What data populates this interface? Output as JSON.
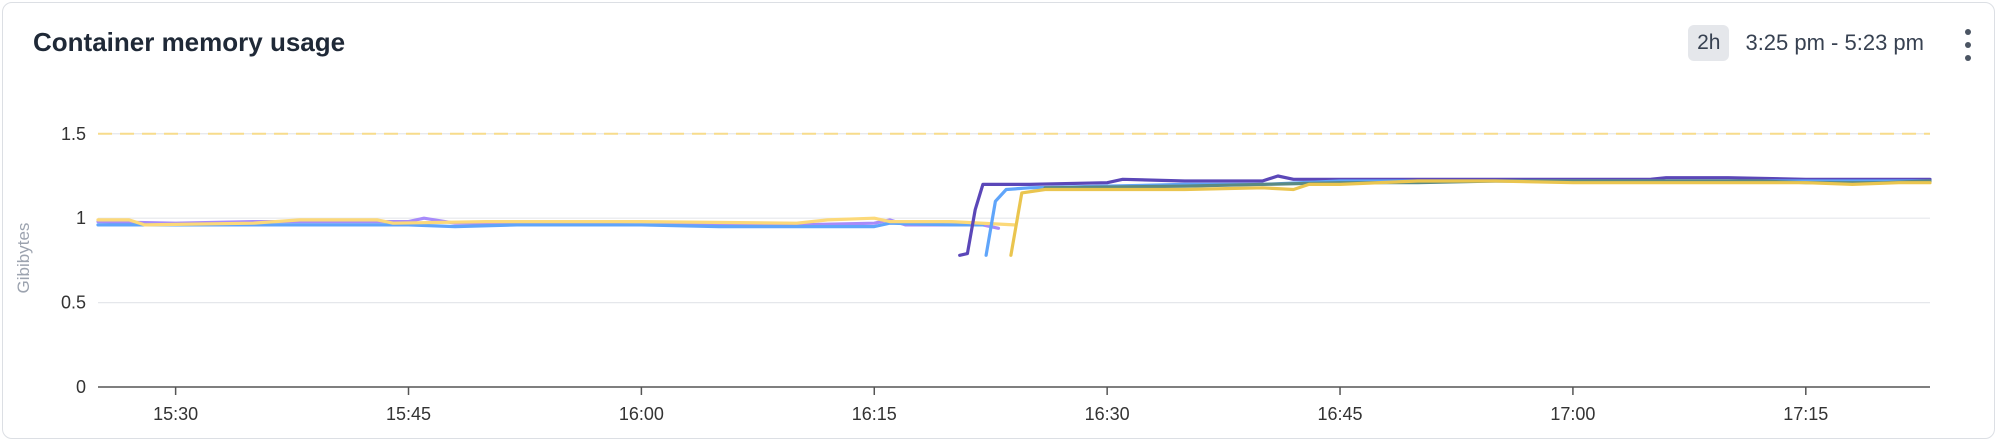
{
  "panel": {
    "title": "Container memory usage",
    "range_badge": "2h",
    "range_text": "3:25 pm - 5:23 pm",
    "menu_icon": "kebab-vertical-icon"
  },
  "chart_data": {
    "type": "line",
    "title": "Container memory usage",
    "xlabel": "",
    "ylabel": "Gibibytes",
    "x_unit": "time (HH:MM)",
    "xlim": [
      "15:25",
      "17:23"
    ],
    "ylim": [
      0,
      1.7
    ],
    "yticks": [
      0,
      0.5,
      1,
      1.5
    ],
    "ytick_labels": [
      "0",
      "0.5",
      "1",
      "1.5"
    ],
    "xticks": [
      "15:30",
      "15:45",
      "16:00",
      "16:15",
      "16:30",
      "16:45",
      "17:00",
      "17:15"
    ],
    "grid": true,
    "legend": "none",
    "threshold": {
      "value": 1.5,
      "color": "#f7dc8c",
      "style": "dashed"
    },
    "series": [
      {
        "color": "#a78bfa",
        "points": [
          [
            "15:25",
            0.98
          ],
          [
            "15:30",
            0.97
          ],
          [
            "15:35",
            0.98
          ],
          [
            "15:40",
            0.98
          ],
          [
            "15:45",
            0.98
          ],
          [
            "15:46",
            1.0
          ],
          [
            "15:48",
            0.97
          ],
          [
            "15:52",
            0.97
          ],
          [
            "16:00",
            0.96
          ],
          [
            "16:10",
            0.96
          ],
          [
            "16:15",
            0.97
          ],
          [
            "16:16",
            0.99
          ],
          [
            "16:17",
            0.96
          ],
          [
            "16:22",
            0.96
          ],
          [
            "16:23",
            0.94
          ]
        ]
      },
      {
        "color": "#60a5fa",
        "points": [
          [
            "15:25",
            0.96
          ],
          [
            "15:30",
            0.96
          ],
          [
            "15:40",
            0.96
          ],
          [
            "15:45",
            0.96
          ],
          [
            "15:48",
            0.95
          ],
          [
            "15:52",
            0.96
          ],
          [
            "16:00",
            0.96
          ],
          [
            "16:05",
            0.95
          ],
          [
            "16:10",
            0.95
          ],
          [
            "16:15",
            0.95
          ],
          [
            "16:16",
            0.97
          ],
          [
            "16:20",
            0.96
          ],
          [
            "16:22",
            0.96
          ]
        ]
      },
      {
        "color": "#fcd979",
        "points": [
          [
            "15:25",
            0.99
          ],
          [
            "15:27",
            0.99
          ],
          [
            "15:28",
            0.96
          ],
          [
            "15:35",
            0.97
          ],
          [
            "15:38",
            0.99
          ],
          [
            "15:43",
            0.99
          ],
          [
            "15:44",
            0.97
          ],
          [
            "15:50",
            0.98
          ],
          [
            "16:00",
            0.98
          ],
          [
            "16:10",
            0.97
          ],
          [
            "16:12",
            0.99
          ],
          [
            "16:15",
            1.0
          ],
          [
            "16:16",
            0.98
          ],
          [
            "16:20",
            0.98
          ],
          [
            "16:24",
            0.96
          ]
        ]
      },
      {
        "color": "#5b47b8",
        "points": [
          [
            "16:20.5",
            0.78
          ],
          [
            "16:21",
            0.79
          ],
          [
            "16:21.5",
            1.05
          ],
          [
            "16:22",
            1.2
          ],
          [
            "16:25",
            1.2
          ],
          [
            "16:30",
            1.21
          ],
          [
            "16:31",
            1.23
          ],
          [
            "16:35",
            1.22
          ],
          [
            "16:40",
            1.22
          ],
          [
            "16:41",
            1.25
          ],
          [
            "16:42",
            1.23
          ],
          [
            "16:45",
            1.23
          ],
          [
            "16:50",
            1.23
          ],
          [
            "16:55",
            1.23
          ],
          [
            "17:00",
            1.23
          ],
          [
            "17:05",
            1.23
          ],
          [
            "17:06",
            1.24
          ],
          [
            "17:10",
            1.24
          ],
          [
            "17:15",
            1.23
          ],
          [
            "17:23",
            1.23
          ]
        ]
      },
      {
        "color": "#60a5fa",
        "points": [
          [
            "16:22.2",
            0.78
          ],
          [
            "16:22.8",
            1.1
          ],
          [
            "16:23.5",
            1.17
          ],
          [
            "16:25",
            1.18
          ],
          [
            "16:30",
            1.19
          ],
          [
            "16:35",
            1.2
          ],
          [
            "16:40",
            1.2
          ],
          [
            "16:45",
            1.22
          ],
          [
            "16:50",
            1.22
          ],
          [
            "17:00",
            1.22
          ],
          [
            "17:10",
            1.22
          ],
          [
            "17:23",
            1.22
          ]
        ]
      },
      {
        "color": "#5b8a83",
        "points": [
          [
            "16:26",
            1.18
          ],
          [
            "16:35",
            1.19
          ],
          [
            "16:45",
            1.21
          ],
          [
            "16:50",
            1.21
          ],
          [
            "16:55",
            1.22
          ],
          [
            "17:05",
            1.22
          ],
          [
            "17:12",
            1.22
          ],
          [
            "17:15",
            1.21
          ],
          [
            "17:20",
            1.21
          ],
          [
            "17:23",
            1.22
          ]
        ]
      },
      {
        "color": "#eac54f",
        "points": [
          [
            "16:23.8",
            0.78
          ],
          [
            "16:24.5",
            1.15
          ],
          [
            "16:26",
            1.17
          ],
          [
            "16:30",
            1.17
          ],
          [
            "16:35",
            1.17
          ],
          [
            "16:40",
            1.18
          ],
          [
            "16:42",
            1.17
          ],
          [
            "16:43",
            1.2
          ],
          [
            "16:45",
            1.2
          ],
          [
            "16:50",
            1.22
          ],
          [
            "16:55",
            1.22
          ],
          [
            "17:00",
            1.21
          ],
          [
            "17:10",
            1.21
          ],
          [
            "17:15",
            1.21
          ],
          [
            "17:18",
            1.2
          ],
          [
            "17:21",
            1.21
          ],
          [
            "17:23",
            1.21
          ]
        ]
      }
    ]
  }
}
